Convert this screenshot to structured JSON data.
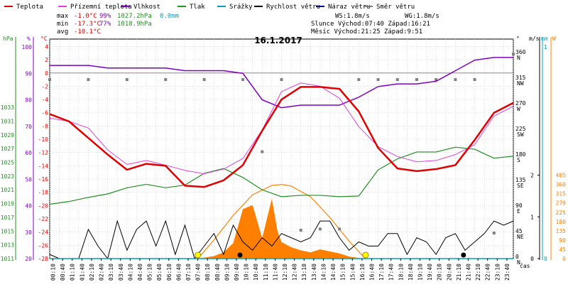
{
  "chart_data": {
    "type": "line",
    "title": "16.1.2017",
    "legend": [
      {
        "name": "Teplota",
        "color": "#e00000"
      },
      {
        "name": "Přízemní teplota",
        "color": "#e040e0"
      },
      {
        "name": "Vlhkost",
        "color": "#8000c0"
      },
      {
        "name": "Tlak",
        "color": "#209020"
      },
      {
        "name": "Srážky",
        "color": "#00a0c0"
      },
      {
        "name": "Rychlost větru",
        "color": "#000000"
      },
      {
        "name": "Náraz větru",
        "color": "#000090"
      },
      {
        "name": "Směr větru",
        "color": "#808080"
      }
    ],
    "stats": {
      "max": {
        "label": "max",
        "temp": "-1.0°C",
        "hum": "99%",
        "press": "1027.2hPa",
        "rain": "0.0mm"
      },
      "min": {
        "label": "min",
        "temp": "-17.3°C",
        "hum": "77%",
        "press": "1018.9hPa"
      },
      "avg": {
        "label": "avg",
        "temp": "-10.1°C"
      }
    },
    "info": {
      "ws": "WS:1.8m/s",
      "wg": "WG:1.8m/s",
      "sun": "Slunce Východ:07:40  Západ:16:21",
      "moon": "Měsíc  Východ:21:25  Západ:9:51"
    },
    "axes": {
      "hpa_unit": "hPa",
      "pct_unit": "%",
      "temp_unit": "°C",
      "dir_unit": "°",
      "ms_unit": "m/s",
      "mm_unit": "mm",
      "wm2_unit": "W",
      "x_label": "čas",
      "hpa_ticks": [
        1011,
        1013,
        1015,
        1017,
        1019,
        1021,
        1023,
        1025,
        1027,
        1029,
        1031,
        1033
      ],
      "pct_ticks": [
        20,
        30,
        40,
        50,
        60,
        70,
        80,
        90,
        100
      ],
      "temp_ticks": [
        -28,
        -26,
        -24,
        -22,
        -20,
        -18,
        -16,
        -14,
        -12,
        -10,
        -8,
        -6,
        -4,
        -2,
        0,
        2,
        4
      ],
      "dir_ticks": [
        {
          "deg": 0,
          "label": "0",
          "dir": "N"
        },
        {
          "deg": 45,
          "label": "45",
          "dir": "NE"
        },
        {
          "deg": 90,
          "label": "90",
          "dir": "E"
        },
        {
          "deg": 135,
          "label": "135",
          "dir": "SE"
        },
        {
          "deg": 180,
          "label": "180",
          "dir": "S"
        },
        {
          "deg": 225,
          "label": "225",
          "dir": "SW"
        },
        {
          "deg": 270,
          "label": "270",
          "dir": "W"
        },
        {
          "deg": 315,
          "label": "315",
          "dir": "NW"
        },
        {
          "deg": 360,
          "label": "360",
          "dir": "N"
        }
      ],
      "ms_ticks": [
        0,
        1,
        2
      ],
      "mm_ticks": [
        0,
        1
      ],
      "wm2_ticks": [
        0,
        45,
        90,
        135,
        180,
        225,
        270,
        315,
        360,
        405
      ],
      "x_ticks": [
        "00:10",
        "00:40",
        "01:10",
        "01:40",
        "02:10",
        "02:40",
        "03:10",
        "03:40",
        "04:10",
        "04:40",
        "05:10",
        "05:40",
        "06:10",
        "06:40",
        "07:10",
        "07:40",
        "08:10",
        "08:40",
        "09:10",
        "09:40",
        "10:10",
        "10:40",
        "11:10",
        "11:40",
        "12:10",
        "12:40",
        "13:10",
        "13:40",
        "14:10",
        "14:40",
        "15:10",
        "15:40",
        "16:10",
        "16:40",
        "17:10",
        "17:40",
        "18:10",
        "18:40",
        "19:10",
        "19:40",
        "20:10",
        "20:40",
        "21:10",
        "21:40",
        "22:10",
        "22:40",
        "23:10",
        "23:40"
      ]
    },
    "series": {
      "temperature": {
        "name": "Teplota",
        "unit": "°C",
        "x": [
          0,
          1,
          2,
          3,
          4,
          5,
          6,
          7,
          8,
          9,
          10,
          11,
          12,
          13,
          14,
          15,
          16,
          17,
          18,
          19,
          20,
          21,
          22,
          23,
          24
        ],
        "y": [
          -6.2,
          -7.3,
          -9.8,
          -12.3,
          -14.6,
          -13.7,
          -14,
          -17,
          -17.2,
          -16.2,
          -13.9,
          -8.7,
          -4,
          -2.1,
          -2.1,
          -2.4,
          -5.8,
          -11.3,
          -14.4,
          -14.8,
          -14.5,
          -13.9,
          -10.1,
          -6,
          -4.5
        ]
      },
      "ground_temperature": {
        "name": "Přízemní teplota",
        "unit": "°C",
        "x": [
          0,
          1,
          2,
          3,
          4,
          5,
          6,
          7,
          8,
          9,
          10,
          11,
          12,
          13,
          14,
          15,
          16,
          17,
          18,
          19,
          20,
          21,
          22,
          23,
          24
        ],
        "y": [
          -6.8,
          -7.3,
          -8.3,
          -11.6,
          -13.8,
          -13.2,
          -13.9,
          -14.7,
          -15.2,
          -14.5,
          -12.9,
          -8.6,
          -2.8,
          -1.5,
          -2,
          -3.8,
          -8.1,
          -11.1,
          -12.6,
          -13.4,
          -13.2,
          -12.3,
          -10.8,
          -6.5,
          -5
        ]
      },
      "humidity": {
        "name": "Vlhkost",
        "unit": "%",
        "x": [
          0,
          1,
          2,
          3,
          4,
          5,
          6,
          7,
          8,
          9,
          10,
          11,
          12,
          13,
          14,
          15,
          16,
          17,
          18,
          19,
          20,
          21,
          22,
          23,
          24
        ],
        "y": [
          93,
          93,
          93,
          92,
          92,
          92,
          92,
          91,
          91,
          91,
          90,
          80,
          77,
          78,
          78,
          78,
          81,
          85,
          86,
          86,
          87,
          91,
          95,
          96,
          96
        ]
      },
      "pressure": {
        "name": "Tlak",
        "unit": "hPa",
        "x": [
          0,
          1,
          2,
          3,
          4,
          5,
          6,
          7,
          8,
          9,
          10,
          11,
          12,
          13,
          14,
          15,
          16,
          17,
          18,
          19,
          20,
          21,
          22,
          23,
          24
        ],
        "y": [
          1018.9,
          1019.3,
          1019.9,
          1020.4,
          1021.3,
          1021.8,
          1021.3,
          1021.7,
          1023.4,
          1024.1,
          1022.8,
          1021.0,
          1020.0,
          1020.2,
          1020.2,
          1020.0,
          1020.1,
          1023.9,
          1025.5,
          1026.5,
          1026.5,
          1027.2,
          1026.9,
          1025.6,
          1025.9
        ]
      },
      "precipitation_mm": {
        "name": "Srážky",
        "unit": "mm",
        "x": [
          0,
          24
        ],
        "y": [
          0,
          0
        ]
      },
      "wind_speed": {
        "name": "Rychlost větru",
        "unit": "m/s",
        "x": [
          0,
          0.5,
          1,
          1.5,
          2,
          2.5,
          3,
          3.5,
          4,
          4.5,
          5,
          5.5,
          6,
          6.5,
          7,
          7.5,
          8,
          8.5,
          9,
          9.5,
          10,
          10.5,
          11,
          11.5,
          12,
          12.5,
          13,
          13.5,
          14,
          14.5,
          15,
          15.5,
          16,
          16.5,
          17,
          17.5,
          18,
          18.5,
          19,
          19.5,
          20,
          20.5,
          21,
          21.5,
          22,
          22.5,
          23,
          23.5,
          24
        ],
        "y": [
          0.1,
          0,
          0,
          0,
          0.7,
          0.3,
          0,
          0.9,
          0.2,
          0.7,
          0.9,
          0.3,
          0.9,
          0.1,
          0.8,
          0,
          0.3,
          0.6,
          0.1,
          0.8,
          0.4,
          0.2,
          0.5,
          0.3,
          0.6,
          0.5,
          0.4,
          0.5,
          0.9,
          0.9,
          0.5,
          0.2,
          0.4,
          0.3,
          0.3,
          0.6,
          0.6,
          0.1,
          0.5,
          0.4,
          0.1,
          0.5,
          0.6,
          0.2,
          0.4,
          0.6,
          0.9,
          0.8,
          0.9
        ]
      },
      "wind_gust": {
        "name": "Náraz větru",
        "unit": "m/s",
        "x": [
          0,
          24
        ],
        "y": [
          0,
          0
        ]
      },
      "wind_direction": {
        "name": "Směr větru",
        "unit": "°",
        "x": [
          0,
          2,
          4,
          6,
          8,
          10,
          11,
          12,
          13,
          14,
          15,
          16,
          17,
          18,
          19,
          20,
          21,
          22,
          23,
          24
        ],
        "y": [
          315,
          315,
          315,
          315,
          315,
          315,
          188,
          315,
          50,
          52,
          52,
          315,
          315,
          315,
          315,
          315,
          315,
          315,
          45,
          360
        ]
      },
      "solar_radiation": {
        "name": "",
        "unit": "W",
        "x": [
          7.67,
          8.5,
          9,
          9.5,
          10,
          10.5,
          11,
          11.3,
          11.5,
          11.8,
          12,
          12.5,
          13,
          13.5,
          14,
          14.5,
          15,
          15.5,
          16,
          16.33
        ],
        "y": [
          0,
          12,
          30,
          75,
          240,
          260,
          100,
          215,
          290,
          130,
          80,
          55,
          40,
          30,
          45,
          35,
          25,
          10,
          3,
          0
        ]
      },
      "solar_theoretical": {
        "name": "",
        "unit": "W",
        "x": [
          7.67,
          8.5,
          9.5,
          10.5,
          11.5,
          12,
          12.5,
          13.5,
          14.5,
          15.5,
          16.33
        ],
        "y": [
          0,
          90,
          210,
          310,
          355,
          360,
          352,
          300,
          200,
          85,
          0
        ]
      },
      "sun_markers": [
        {
          "time": "07:40",
          "x": 7.67
        },
        {
          "time": "16:21",
          "x": 16.35
        }
      ],
      "moon_markers": [
        {
          "time": "9:51",
          "x": 9.85
        },
        {
          "time": "21:25",
          "x": 21.42
        }
      ]
    }
  }
}
